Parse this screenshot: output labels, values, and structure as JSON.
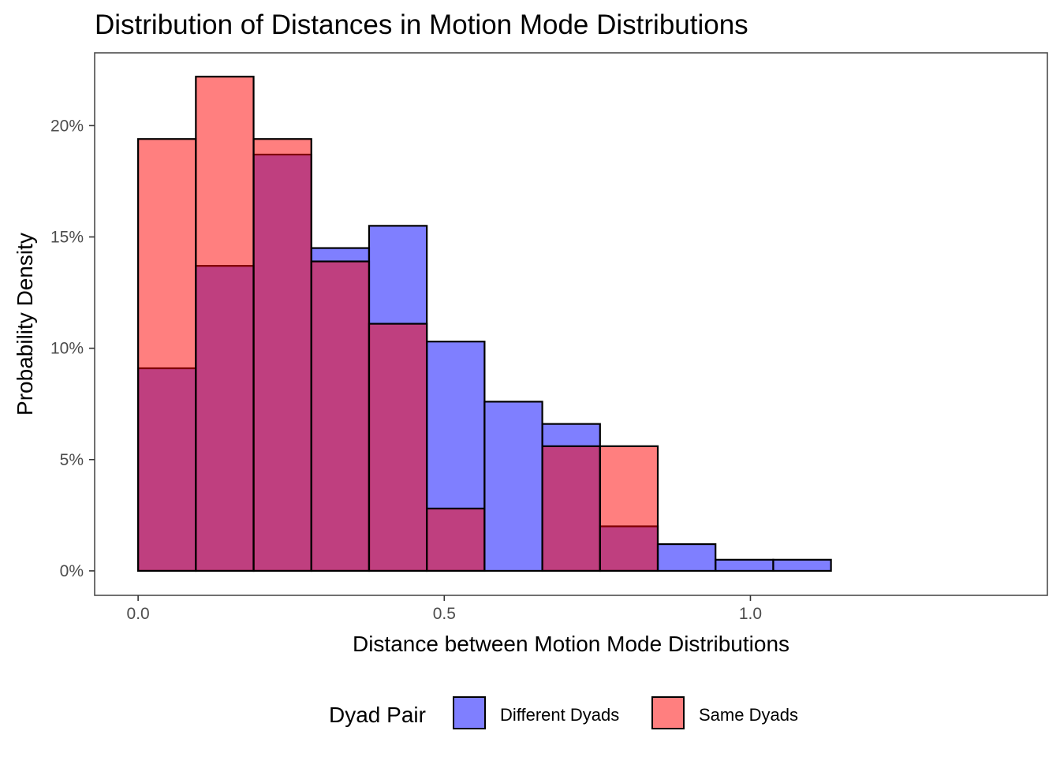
{
  "chart_data": {
    "type": "bar",
    "title": "Distribution of Distances in Motion Mode Distributions",
    "xlabel": "Distance between Motion Mode Distributions",
    "ylabel": "Probability Density",
    "xlim": [
      -0.071,
      1.485
    ],
    "ylim": [
      -0.011,
      0.2327
    ],
    "x_ticks": [
      {
        "value": 0.0,
        "label": "0.0"
      },
      {
        "value": 0.5,
        "label": "0.5"
      },
      {
        "value": 1.0,
        "label": "1.0"
      }
    ],
    "y_ticks": [
      {
        "value": 0.0,
        "label": "0%"
      },
      {
        "value": 0.05,
        "label": "5%"
      },
      {
        "value": 0.1,
        "label": "10%"
      },
      {
        "value": 0.15,
        "label": "15%"
      },
      {
        "value": 0.2,
        "label": "20%"
      }
    ],
    "bin_edges": [
      0.0,
      0.0943,
      0.1886,
      0.2829,
      0.3772,
      0.4715,
      0.5658,
      0.6601,
      0.7544,
      0.8487,
      0.943,
      1.0373,
      1.1316,
      1.2259,
      1.3202,
      1.4145
    ],
    "series": [
      {
        "name": "Different Dyads",
        "color": "#0000FF",
        "fill_opacity": 0.5,
        "values": [
          0.091,
          0.137,
          0.187,
          0.145,
          0.155,
          0.103,
          0.076,
          0.066,
          0.02,
          0.012,
          0.005,
          0.005,
          0.0,
          0.0,
          0.0
        ]
      },
      {
        "name": "Same Dyads",
        "color": "#FF0000",
        "fill_opacity": 0.5,
        "values": [
          0.194,
          0.222,
          0.194,
          0.139,
          0.111,
          0.028,
          0.0,
          0.056,
          0.056,
          0.0,
          0.0,
          0.0,
          0.0,
          0.0,
          0.0
        ]
      }
    ],
    "grid": false,
    "legend": {
      "title": "Dyad Pair",
      "position": "bottom"
    }
  }
}
